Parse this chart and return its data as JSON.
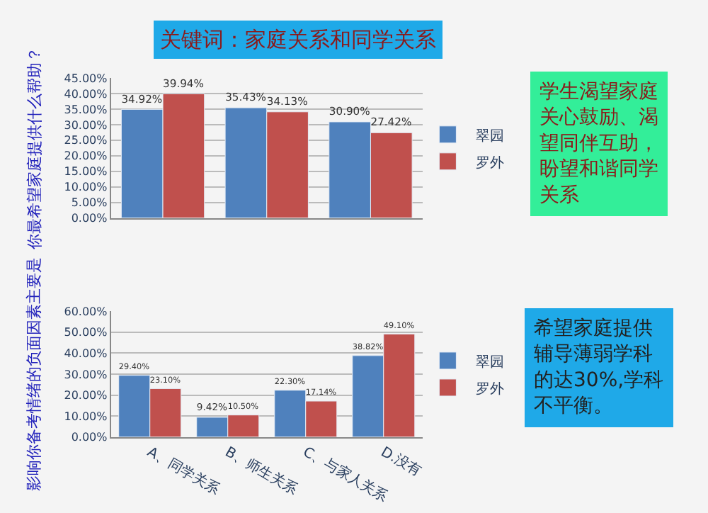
{
  "chart_data": [
    {
      "type": "bar",
      "title": "关键词：家庭关系和同学关系",
      "ylabel": "你最希望家庭提供什么帮助？",
      "categories": [
        null,
        null,
        null
      ],
      "tick_labels": "y",
      "grid": "y",
      "legend": "right",
      "series": [
        {
          "name": "翠园",
          "color": "#4f81bd",
          "values": [
            34.92,
            35.43,
            30.9
          ],
          "value_labels": [
            "34.92%",
            "35.43%",
            "30.90%"
          ]
        },
        {
          "name": "罗外",
          "color": "#c0504d",
          "values": [
            39.94,
            34.13,
            27.42
          ],
          "value_labels": [
            "39.94%",
            "34.13%",
            "27.42%"
          ]
        }
      ],
      "ylim": [
        0,
        45
      ],
      "yticks": [
        {
          "value": 0,
          "label": "0.00%"
        },
        {
          "value": 5,
          "label": "5.00%"
        },
        {
          "value": 10,
          "label": "10.00%"
        },
        {
          "value": 15,
          "label": "15.00%"
        },
        {
          "value": 20,
          "label": "20.00%"
        },
        {
          "value": 25,
          "label": "25.00%"
        },
        {
          "value": 30,
          "label": "30.00%"
        },
        {
          "value": 35,
          "label": "35.00%"
        },
        {
          "value": 40,
          "label": "40.00%"
        },
        {
          "value": 45,
          "label": "45.00%"
        }
      ],
      "annotations": [
        "学生渴望家庭关心鼓励、渴望同伴互助，盼望和谐同学关系"
      ]
    },
    {
      "type": "bar",
      "ylabel": "影响你备考情绪的负面因素主要是",
      "categories": [
        "A、同学关系",
        "B、师生关系",
        "C、与家人关系",
        "D.没有"
      ],
      "grid": "y",
      "legend": "right",
      "series": [
        {
          "name": "翠园",
          "color": "#4f81bd",
          "values": [
            29.4,
            9.42,
            22.3,
            38.82
          ],
          "value_labels": [
            "29.40%",
            "9.42%",
            "22.30%",
            "38.82%"
          ]
        },
        {
          "name": "罗外",
          "color": "#c0504d",
          "values": [
            23.1,
            10.5,
            17.14,
            49.1
          ],
          "value_labels": [
            "23.10%",
            "10.50%",
            "17.14%",
            "49.10%"
          ]
        }
      ],
      "ylim": [
        0,
        60
      ],
      "yticks": [
        {
          "value": 0,
          "label": "0.00%"
        },
        {
          "value": 10,
          "label": "10.00%"
        },
        {
          "value": 20,
          "label": "20.00%"
        },
        {
          "value": 30,
          "label": "30.00%"
        },
        {
          "value": 40,
          "label": "40.00%"
        },
        {
          "value": 50,
          "label": "50.00%"
        },
        {
          "value": 60,
          "label": "60.00%"
        }
      ],
      "annotations": [
        "希望家庭提供辅导薄弱学科的达30%,学科不平衡。"
      ]
    }
  ]
}
